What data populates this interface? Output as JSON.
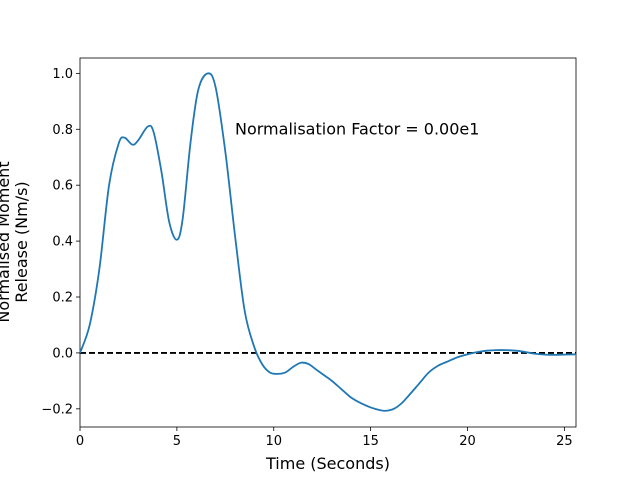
{
  "chart_data": {
    "type": "line",
    "xlabel": "Time (Seconds)",
    "ylabel_lines": [
      "Normalised Moment",
      "Release (Nm/s)"
    ],
    "xlim": [
      0,
      25.6
    ],
    "ylim": [
      -0.265,
      1.055
    ],
    "xticks": [
      0,
      5,
      10,
      15,
      20,
      25
    ],
    "yticks": [
      -0.2,
      0.0,
      0.2,
      0.4,
      0.6,
      0.8,
      1.0
    ],
    "ytick_labels": [
      "−0.2",
      "0.0",
      "0.2",
      "0.4",
      "0.6",
      "0.8",
      "1.0"
    ],
    "grid": false,
    "annotation": {
      "text": "Normalisation Factor = 0.00e1",
      "x": 8.0,
      "y": 0.8
    },
    "reference_line": {
      "y": 0.0,
      "style": "dashed",
      "color": "#000000"
    },
    "series": [
      {
        "color": "#1f77b4",
        "x": [
          0,
          0.5,
          1.0,
          1.5,
          2.0,
          2.3,
          2.7,
          3.0,
          3.5,
          3.8,
          4.2,
          4.6,
          5.0,
          5.3,
          5.7,
          6.1,
          6.6,
          7.0,
          7.5,
          8.0,
          8.5,
          9.0,
          9.4,
          9.8,
          10.2,
          10.6,
          11.0,
          11.4,
          11.8,
          12.2,
          12.6,
          13.0,
          13.5,
          14.0,
          14.5,
          15.0,
          15.5,
          15.8,
          16.2,
          16.6,
          17.0,
          17.5,
          18.0,
          18.5,
          19.0,
          19.5,
          20.0,
          20.5,
          21.0,
          21.5,
          22.0,
          22.5,
          23.0,
          23.5,
          24.0,
          24.5,
          25.0,
          25.6
        ],
        "y": [
          0.0,
          0.1,
          0.3,
          0.6,
          0.75,
          0.77,
          0.745,
          0.76,
          0.81,
          0.79,
          0.65,
          0.47,
          0.405,
          0.48,
          0.75,
          0.94,
          1.0,
          0.95,
          0.72,
          0.42,
          0.15,
          0.02,
          -0.04,
          -0.07,
          -0.075,
          -0.07,
          -0.05,
          -0.035,
          -0.04,
          -0.06,
          -0.08,
          -0.1,
          -0.13,
          -0.16,
          -0.18,
          -0.195,
          -0.205,
          -0.207,
          -0.2,
          -0.18,
          -0.15,
          -0.11,
          -0.07,
          -0.045,
          -0.03,
          -0.015,
          -0.005,
          0.003,
          0.008,
          0.01,
          0.01,
          0.008,
          0.003,
          -0.003,
          -0.006,
          -0.007,
          -0.006,
          -0.005
        ]
      }
    ]
  }
}
